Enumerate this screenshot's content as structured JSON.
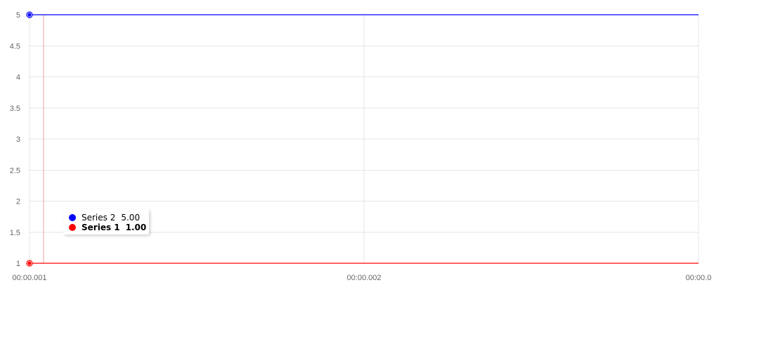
{
  "chart_data": {
    "type": "line",
    "x_ticks": [
      "00:00.001",
      "00:00.002",
      "00:00.0"
    ],
    "y_ticks": [
      "1",
      "1.5",
      "2",
      "2.5",
      "3",
      "3.5",
      "4",
      "4.5",
      "5"
    ],
    "ylim": [
      1,
      5
    ],
    "grid": true,
    "series": [
      {
        "name": "Series 1",
        "color": "#ff0000",
        "x": [
          "00:00.001",
          "00:00.003"
        ],
        "values": [
          1,
          1
        ]
      },
      {
        "name": "Series 2",
        "color": "#0000ff",
        "x": [
          "00:00.001",
          "00:00.003"
        ],
        "values": [
          5,
          5
        ]
      }
    ],
    "hover_x": "00:00.001",
    "tooltip": {
      "rows": [
        {
          "series": "Series 2",
          "value": "5.00",
          "color": "#0000ff",
          "highlighted": false
        },
        {
          "series": "Series 1",
          "value": "1.00",
          "color": "#ff0000",
          "highlighted": true
        }
      ]
    }
  }
}
